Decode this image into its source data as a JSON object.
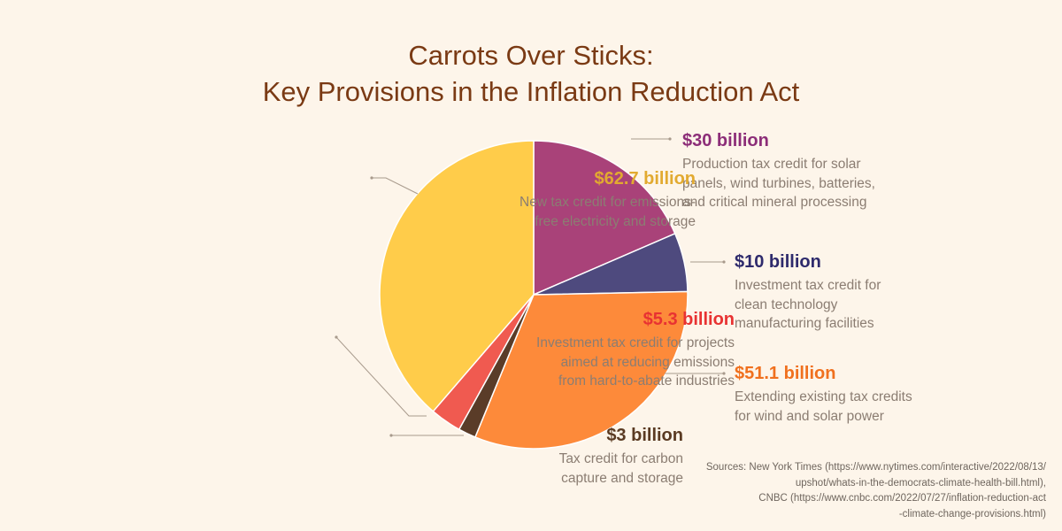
{
  "title": {
    "line1": "Carrots Over Sticks:",
    "line2": "Key Provisions in the Inflation Reduction Act"
  },
  "chart_data": {
    "type": "pie",
    "title": "Carrots Over Sticks: Key Provisions in the Inflation Reduction Act",
    "units": "billion USD",
    "slices": [
      {
        "value": 30,
        "label": "$30 billion",
        "desc": [
          "Production tax credit for solar",
          "panels, wind turbines, batteries,",
          "and critical mineral processing"
        ],
        "color": "#a94279"
      },
      {
        "value": 10,
        "label": "$10 billion",
        "desc": [
          "Investment tax credit for",
          "clean technology",
          "manufacturing facilities"
        ],
        "color": "#4e4a7e"
      },
      {
        "value": 51.1,
        "label": "$51.1 billion",
        "desc": [
          "Extending existing tax credits",
          "for wind and solar power"
        ],
        "color": "#fd8a3a"
      },
      {
        "value": 3,
        "label": "$3 billion",
        "desc": [
          "Tax credit for carbon",
          "capture and storage"
        ],
        "color": "#5a3c28"
      },
      {
        "value": 5.3,
        "label": "$5.3 billion",
        "desc": [
          "Investment tax credit for projects",
          "aimed at reducing emissions",
          "from hard-to-abate industries"
        ],
        "color": "#f05a50"
      },
      {
        "value": 62.7,
        "label": "$62.7 billion",
        "desc": [
          "New tax credit for emissions-",
          "free electricity and storage"
        ],
        "color": "#ffcc4a"
      }
    ],
    "label_colors": [
      "#8c2d78",
      "#2e2a6c",
      "#f0701e",
      "#5a3a22",
      "#e83232",
      "#e2aa30"
    ]
  },
  "sources": [
    "Sources: New York Times (https://www.nytimes.com/interactive/2022/08/13/",
    "upshot/whats-in-the-democrats-climate-health-bill.html),",
    "CNBC (https://www.cnbc.com/2022/07/27/inflation-reduction-act",
    "-climate-change-provisions.html)"
  ]
}
